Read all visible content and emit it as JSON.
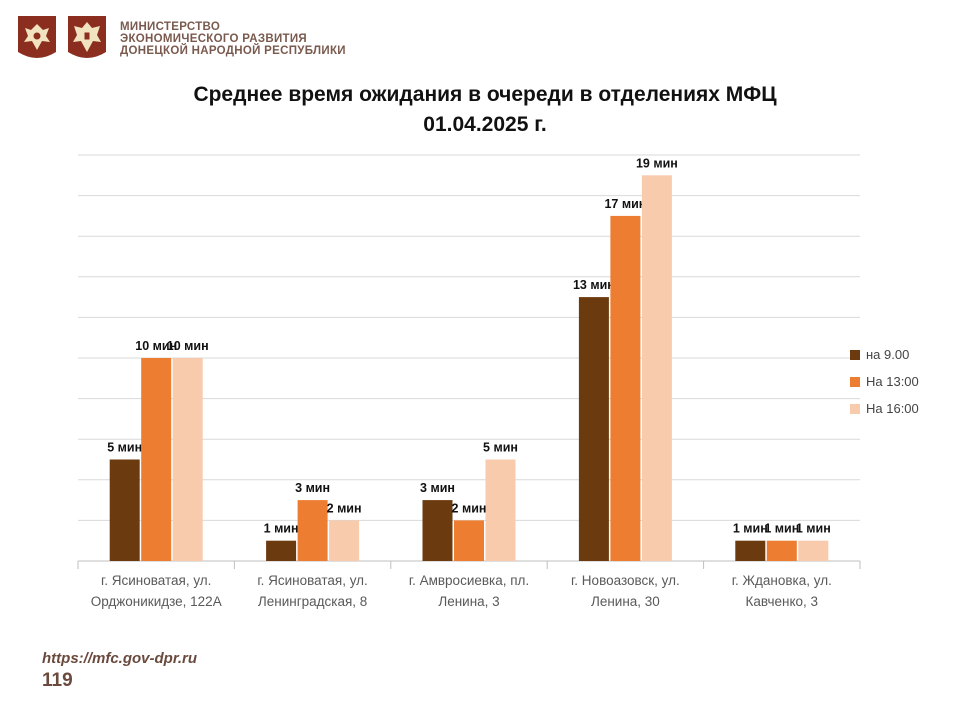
{
  "header": {
    "ministry_line1": "МИНИСТЕРСТВО",
    "ministry_line2": "ЭКОНОМИЧЕСКОГО РАЗВИТИЯ",
    "ministry_line3": "ДОНЕЦКОЙ НАРОДНОЙ РЕСПУБЛИКИ",
    "emblem1_icon": "russia-coat-of-arms-icon",
    "emblem2_icon": "dpr-coat-of-arms-icon"
  },
  "footer": {
    "url": "https://mfc.gov-dpr.ru",
    "page_number": "119"
  },
  "chart_data": {
    "type": "bar",
    "title_line1": "Среднее время ожидания в очереди в отделениях МФЦ",
    "title_line2": "01.04.2025   г.",
    "categories": [
      [
        "г. Ясиноватая, ул.",
        "Орджоникидзе, 122А"
      ],
      [
        "г. Ясиноватая, ул.",
        "Ленинградская, 8"
      ],
      [
        "г. Амвросиевка, пл.",
        "Ленина, 3"
      ],
      [
        "г. Новоазовск, ул.",
        "Ленина, 30"
      ],
      [
        "г. Ждановка, ул.",
        "Кавченко, 3"
      ]
    ],
    "series": [
      {
        "name": "на 9.00",
        "color": "#6b3a0e",
        "values": [
          5,
          1,
          3,
          13,
          1
        ],
        "labels": [
          "5 мин",
          "1 мин",
          "3 мин",
          "13 мин",
          "1 мин"
        ]
      },
      {
        "name": "На 13:00",
        "color": "#ed7d31",
        "values": [
          10,
          3,
          2,
          17,
          1
        ],
        "labels": [
          "10 мин",
          "3 мин",
          "2 мин",
          "17 мин",
          "1 мин"
        ]
      },
      {
        "name": "На 16:00",
        "color": "#f8cbad",
        "values": [
          10,
          2,
          5,
          19,
          1
        ],
        "labels": [
          "10 мин",
          "2 мин",
          "5 мин",
          "19 мин",
          "1 мин"
        ]
      }
    ],
    "ylim": [
      0,
      20
    ],
    "grid": true,
    "legend_position": "right"
  }
}
